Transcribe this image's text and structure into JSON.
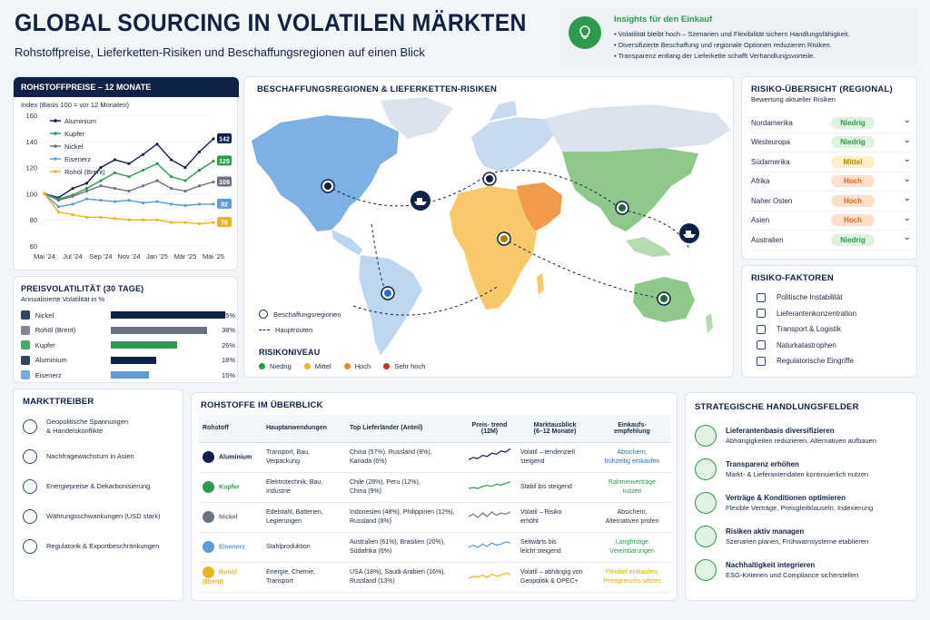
{
  "header": {
    "title": "GLOBAL SOURCING IN VOLATILEN MÄRKTEN",
    "subtitle": "Rohstoffpreise, Lieferketten-Risiken und Beschaffungsregionen auf einen Blick"
  },
  "insights": {
    "title": "Insights für den Einkauf",
    "items": [
      "Volatilität bleibt hoch – Szenarien und Flexibilität sichern Handlungsfähigkeit.",
      "Diversifizierte Beschaffung und regionale Optionen reduzieren Risiken.",
      "Transparenz entlang der Lieferkette schafft Verhandlungsvorteile."
    ]
  },
  "prices": {
    "title": "ROHSTOFFPREISE – 12 MONATE",
    "subtitle": "Index (Basis 100 = vor 12 Monaten)"
  },
  "chart_data": {
    "type": "line",
    "x": [
      "Mai '24",
      "Jun '24",
      "Jul '24",
      "Aug '24",
      "Sep '24",
      "Okt '24",
      "Nov '24",
      "Dez '24",
      "Jan '25",
      "Feb '25",
      "Mär '25",
      "Apr '25",
      "Mai '25"
    ],
    "xticks": [
      "Mai '24",
      "Jul '24",
      "Sep '24",
      "Nov '24",
      "Jan '25",
      "Mär '25",
      "Mai '25"
    ],
    "ylim": [
      60,
      160
    ],
    "yticks": [
      60,
      80,
      100,
      120,
      140,
      160
    ],
    "series": [
      {
        "name": "Aluminium",
        "color": "#0f2147",
        "values": [
          100,
          97,
          104,
          108,
          120,
          126,
          123,
          130,
          138,
          126,
          120,
          132,
          142
        ]
      },
      {
        "name": "Kupfer",
        "color": "#2e9a4e",
        "values": [
          100,
          96,
          99,
          104,
          110,
          116,
          113,
          118,
          123,
          113,
          110,
          118,
          125
        ]
      },
      {
        "name": "Nickel",
        "color": "#6b7280",
        "values": [
          100,
          95,
          98,
          102,
          106,
          104,
          102,
          106,
          110,
          104,
          102,
          106,
          109
        ]
      },
      {
        "name": "Eisenerz",
        "color": "#5a9bd8",
        "values": [
          100,
          90,
          92,
          96,
          95,
          94,
          95,
          93,
          94,
          92,
          91,
          92,
          92
        ]
      },
      {
        "name": "Rohöl (Brent)",
        "color": "#e8b421",
        "values": [
          100,
          86,
          84,
          82,
          82,
          81,
          80,
          80,
          80,
          78,
          78,
          77,
          78
        ]
      }
    ],
    "end_labels": [
      "142",
      "125",
      "109",
      "92",
      "78"
    ]
  },
  "volatility": {
    "title": "PREISVOLATILITÄT (30 TAGE)",
    "subtitle": "Annualisierte Volatilität in %",
    "items": [
      {
        "name": "Nickel",
        "value": 45,
        "label": "45%",
        "color": "#0f2147",
        "icon": "nickel-icon"
      },
      {
        "name": "Rohöl (Brent)",
        "value": 38,
        "label": "38%",
        "color": "#6b7280",
        "icon": "oil-drop-icon"
      },
      {
        "name": "Kupfer",
        "value": 26,
        "label": "26%",
        "color": "#2e9a4e",
        "icon": "copper-icon"
      },
      {
        "name": "Aluminium",
        "value": 18,
        "label": "18%",
        "color": "#0f2147",
        "icon": "aluminium-icon"
      },
      {
        "name": "Eisenerz",
        "value": 15,
        "label": "15%",
        "color": "#5a9bd8",
        "icon": "iron-ore-icon"
      }
    ]
  },
  "map": {
    "title": "BESCHAFFUNGSREGIONEN & LIEFERKETTEN-RISIKEN",
    "legend": {
      "regions": "Beschaffungsregionen",
      "routes": "Hauptrouten"
    },
    "risk_title": "RISIKONIVEAU",
    "risk_levels": [
      {
        "label": "Niedrig",
        "color": "#2e9a4e"
      },
      {
        "label": "Mittel",
        "color": "#e8b421"
      },
      {
        "label": "Hoch",
        "color": "#f08a24"
      },
      {
        "label": "Sehr hoch",
        "color": "#d62a2a"
      }
    ]
  },
  "regional": {
    "title": "RISIKO-ÜBERSICHT (REGIONAL)",
    "subtitle": "Bewertung aktueller Risiken",
    "rows": [
      {
        "region": "Nordamerika",
        "level": "Niedrig",
        "kind": "low"
      },
      {
        "region": "Westeuropa",
        "level": "Niedrig",
        "kind": "low"
      },
      {
        "region": "Südamerika",
        "level": "Mittel",
        "kind": "mid"
      },
      {
        "region": "Afrika",
        "level": "Hoch",
        "kind": "high"
      },
      {
        "region": "Naher Osten",
        "level": "Hoch",
        "kind": "high"
      },
      {
        "region": "Asien",
        "level": "Hoch",
        "kind": "high"
      },
      {
        "region": "Australien",
        "level": "Niedrig",
        "kind": "low"
      }
    ]
  },
  "factors": {
    "title": "RISIKO-FAKTOREN",
    "items": [
      {
        "label": "Politische Instabilität",
        "icon": "government-building-icon"
      },
      {
        "label": "Lieferantenkonzentration",
        "icon": "network-icon"
      },
      {
        "label": "Transport & Logistik",
        "icon": "truck-icon"
      },
      {
        "label": "Naturkatastrophen",
        "icon": "storm-icon"
      },
      {
        "label": "Regulatorische Eingriffe",
        "icon": "regulation-icon"
      }
    ]
  },
  "drivers": {
    "title": "MARKTTREIBER",
    "items": [
      {
        "label": "Geopolitische Spannungen\n& Handelskonflikte",
        "icon": "globe-icon"
      },
      {
        "label": "Nachfragewachstum in Asien",
        "icon": "growth-chart-icon"
      },
      {
        "label": "Energiepreise & Dekarbonisierung",
        "icon": "leaf-icon"
      },
      {
        "label": "Währungsschwankungen (USD stark)",
        "icon": "dollar-icon"
      },
      {
        "label": "Regulatorik & Exportbeschränkungen",
        "icon": "clipboard-icon"
      }
    ]
  },
  "overview": {
    "title": "ROHSTOFFE IM ÜBERBLICK",
    "headers": [
      "Rohstoff",
      "Hauptanwendungen",
      "Top Lieferländer (Anteil)",
      "Preis- trend\n(12M)",
      "Marktausblick\n(6–12 Monate)",
      "Einkaufs-\nempfehlung"
    ],
    "rows": [
      {
        "name": "Aluminium",
        "color": "#0f2147",
        "uses": "Transport, Bau,\nVerpackung",
        "suppliers": "China (57%), Russland (8%),\nKanada (6%)",
        "outlook": "Volatil – tendenziell\nsteigend",
        "rec": "Absichern,\nfrühzeitig einkaufen",
        "rec_color": "#2a6fc4",
        "trend": [
          3,
          5,
          4,
          7,
          6,
          9,
          8,
          11,
          10,
          13
        ]
      },
      {
        "name": "Kupfer",
        "color": "#2e9a4e",
        "uses": "Elektrotechnik, Bau,\nIndustrie",
        "suppliers": "Chile (28%), Peru (12%),\nChina (9%)",
        "outlook": "Stabil bis steigend",
        "rec": "Rahmenverträge\nnutzen",
        "rec_color": "#2e9a4e",
        "trend": [
          4,
          5,
          4,
          6,
          7,
          6,
          8,
          7,
          9,
          10
        ]
      },
      {
        "name": "Nickel",
        "color": "#6b7280",
        "uses": "Edelstahl, Batterien,\nLegierungen",
        "suppliers": "Indonesien (48%), Philippinen (12%),\nRussland (8%)",
        "outlook": "Volatil – Risiko\nerhöht",
        "rec": "Absichern,\nAlternativen prüfen",
        "rec_color": "#333",
        "trend": [
          6,
          8,
          5,
          9,
          6,
          10,
          7,
          9,
          8,
          10
        ]
      },
      {
        "name": "Eisenerz",
        "color": "#5a9bd8",
        "uses": "Stahlproduktion",
        "suppliers": "Australien (61%), Brasilien (20%),\nSüdafrika (6%)",
        "outlook": "Seitwärts bis\nleicht steigend",
        "rec": "Langfristige\nVereinbarungen",
        "rec_color": "#2e9a4e",
        "trend": [
          5,
          7,
          5,
          8,
          6,
          9,
          7,
          8,
          10,
          9
        ]
      },
      {
        "name": "Rohöl (Brent)",
        "color": "#e8b421",
        "uses": "Energie, Chemie,\nTransport",
        "suppliers": "USA (18%), Saudi-Arabien (16%),\nRussland (13%)",
        "outlook": "Volatil – abhängig von\nGeopolitik & OPEC+",
        "rec": "Flexibel einkaufen,\nPreisgrenzen setzen",
        "rec_color": "#e0a800",
        "trend": [
          4,
          6,
          5,
          7,
          5,
          8,
          6,
          7,
          9,
          8
        ]
      }
    ]
  },
  "strategy": {
    "title": "STRATEGISCHE HANDLUNGSFELDER",
    "items": [
      {
        "title": "Lieferantenbasis diversifizieren",
        "desc": "Abhängigkeiten reduzieren, Alternativen aufbauen",
        "icon": "diversify-icon"
      },
      {
        "title": "Transparenz erhöhen",
        "desc": "Markt- & Lieferantendaten kontinuierlich nutzen",
        "icon": "refresh-icon"
      },
      {
        "title": "Verträge & Konditionen optimieren",
        "desc": "Flexible Verträge, Preisgleitklauseln, Indexierung",
        "icon": "contract-icon"
      },
      {
        "title": "Risiken aktiv managen",
        "desc": "Szenarien planen, Frühwarnsysteme etablieren",
        "icon": "risk-icon"
      },
      {
        "title": "Nachhaltigkeit integrieren",
        "desc": "ESG-Kriterien und Compliance sicherstellen",
        "icon": "sustainability-icon"
      }
    ]
  }
}
